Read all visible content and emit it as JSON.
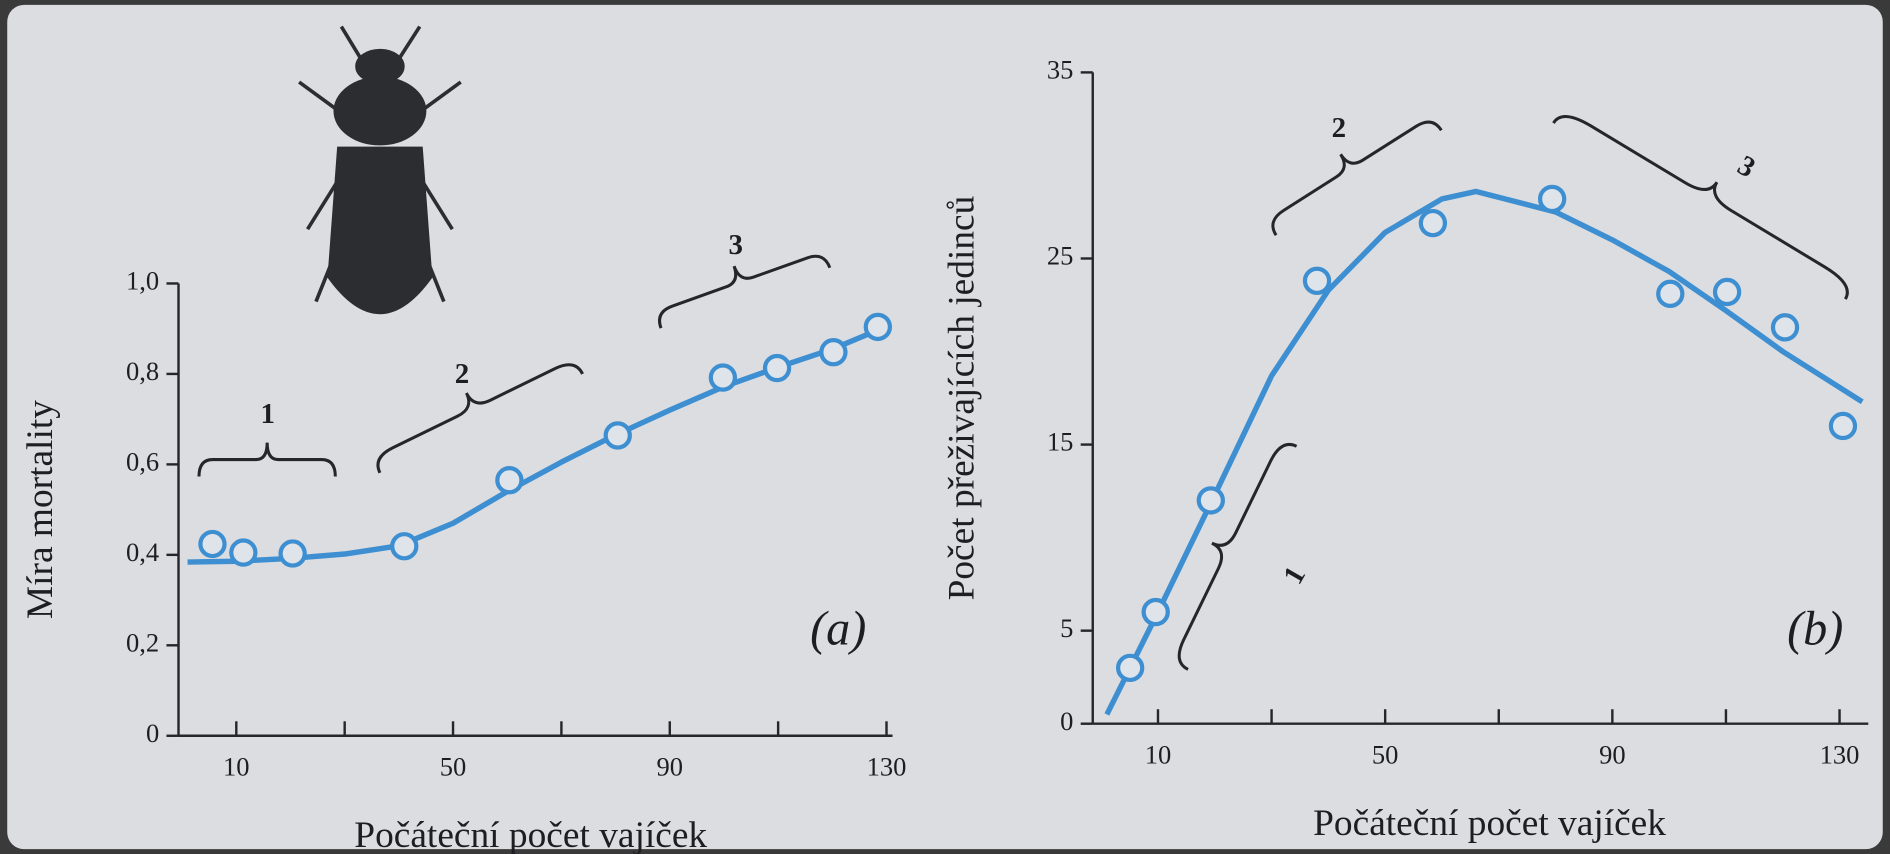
{
  "chart_data": [
    {
      "type": "scatter",
      "y_label": "Míra mortality",
      "x_label": "Počáteční počet vajíček",
      "panel_label": "(a)",
      "xlim": [
        0,
        130
      ],
      "xticks": [
        10,
        50,
        90,
        130
      ],
      "xminorticks": [
        30,
        70,
        110
      ],
      "ylim": [
        0,
        1
      ],
      "yticks": [
        0,
        {
          "value": 0.2,
          "label": "0,2"
        },
        {
          "value": 0.4,
          "label": "0,4"
        },
        {
          "value": 0.6,
          "label": "0,6"
        },
        {
          "value": 0.8,
          "label": "0,8"
        },
        {
          "value": 1,
          "label": "1,0"
        }
      ],
      "color": "#3d8fd1",
      "points": {
        "x": [
          5.6,
          11.3,
          20.4,
          41,
          60.4,
          80.4,
          99.8,
          109.8,
          120.2,
          128.4
        ],
        "y": [
          0.424,
          0.405,
          0.403,
          0.419,
          0.565,
          0.664,
          0.792,
          0.813,
          0.848,
          0.904
        ]
      },
      "curve": {
        "x": [
          1,
          10,
          20,
          30,
          40,
          50,
          60,
          70,
          80,
          90,
          100,
          110,
          120,
          129
        ],
        "y": [
          0.384,
          0.386,
          0.392,
          0.402,
          0.42,
          0.47,
          0.54,
          0.605,
          0.665,
          0.72,
          0.772,
          0.815,
          0.855,
          0.9
        ]
      },
      "annotations": [
        "1",
        "2",
        "3"
      ]
    },
    {
      "type": "scatter",
      "y_label": "Počet přeživajících jedinců",
      "x_label": "Počáteční počet vajíček",
      "panel_label": "(b)",
      "xlim": [
        0,
        134
      ],
      "xticks": [
        10,
        50,
        90,
        130
      ],
      "xminorticks": [
        30,
        70,
        110
      ],
      "ylim": [
        0,
        35
      ],
      "yticks": [
        0,
        5,
        15,
        25,
        35
      ],
      "color": "#3d8fd1",
      "points": {
        "x": [
          5.1,
          9.6,
          19.3,
          38,
          58.4,
          79.4,
          100.2,
          110.2,
          120.4,
          130.6
        ],
        "y": [
          3,
          6,
          12,
          23.8,
          26.9,
          28.2,
          23.1,
          23.2,
          21.3,
          16
        ]
      },
      "curve": {
        "x": [
          1,
          10,
          20,
          30,
          40,
          50,
          60,
          66,
          80,
          90,
          100,
          110,
          120,
          134
        ],
        "y": [
          0.5,
          6,
          12.3,
          18.7,
          23.3,
          26.4,
          28.2,
          28.6,
          27.5,
          26,
          24.3,
          22.2,
          20,
          17.3
        ]
      },
      "annotations": [
        "1",
        "2",
        "3"
      ]
    }
  ]
}
